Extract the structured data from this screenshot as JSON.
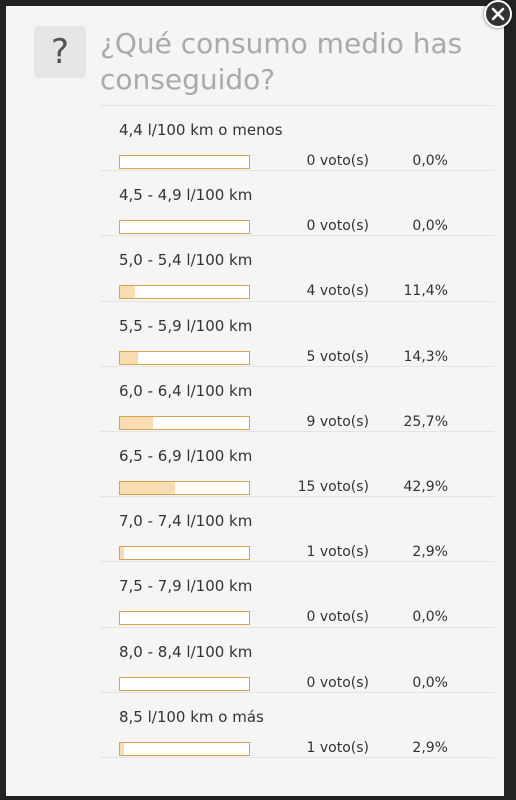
{
  "poll": {
    "icon": "question-mark-icon",
    "icon_glyph": "?",
    "title": "¿Qué consumo medio has conseguido?",
    "close_icon": "close-icon",
    "bar_color": "#fadcb3",
    "bar_border_color": "#d9a350",
    "options": [
      {
        "label": "4,4 l/100 km o menos",
        "votes": "0 voto(s)",
        "percent": "0,0%",
        "fraction": 0.0
      },
      {
        "label": "4,5 - 4,9 l/100 km",
        "votes": "0 voto(s)",
        "percent": "0,0%",
        "fraction": 0.0
      },
      {
        "label": "5,0 - 5,4 l/100 km",
        "votes": "4 voto(s)",
        "percent": "11,4%",
        "fraction": 0.114
      },
      {
        "label": "5,5 - 5,9 l/100 km",
        "votes": "5 voto(s)",
        "percent": "14,3%",
        "fraction": 0.143
      },
      {
        "label": "6,0 - 6,4 l/100 km",
        "votes": "9 voto(s)",
        "percent": "25,7%",
        "fraction": 0.257
      },
      {
        "label": "6,5 - 6,9 l/100 km",
        "votes": "15 voto(s)",
        "percent": "42,9%",
        "fraction": 0.429
      },
      {
        "label": "7,0 - 7,4 l/100 km",
        "votes": "1 voto(s)",
        "percent": "2,9%",
        "fraction": 0.029
      },
      {
        "label": "7,5 - 7,9 l/100 km",
        "votes": "0 voto(s)",
        "percent": "0,0%",
        "fraction": 0.0
      },
      {
        "label": "8,0 - 8,4 l/100 km",
        "votes": "0 voto(s)",
        "percent": "0,0%",
        "fraction": 0.0
      },
      {
        "label": "8,5 l/100 km o más",
        "votes": "1 voto(s)",
        "percent": "2,9%",
        "fraction": 0.029
      }
    ]
  }
}
